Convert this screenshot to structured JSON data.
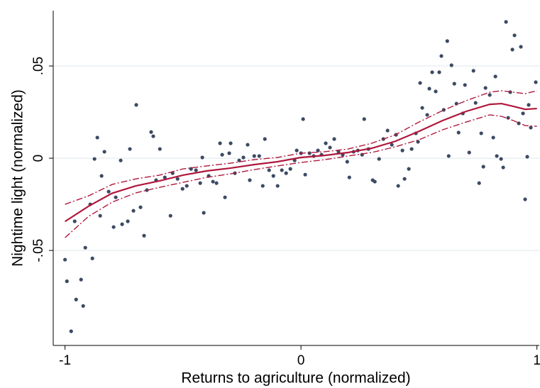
{
  "chart_data": {
    "type": "scatter",
    "xlabel": "Returns to agriculture (normalized)",
    "ylabel": "Nightime light (normalized)",
    "xlim": [
      -1.05,
      1.01
    ],
    "xticks": [
      -1,
      0,
      1
    ],
    "ylim": [
      -0.1015,
      0.08
    ],
    "yticks": [
      {
        "value": -0.05,
        "label": "-.05"
      },
      {
        "value": 0,
        "label": "0"
      },
      {
        "value": 0.05,
        "label": ".05"
      }
    ],
    "grid": true,
    "series": [
      {
        "type": "scatter",
        "color": "#3c4a63",
        "x": [
          -1.0,
          -0.992,
          -0.974,
          -0.959,
          -0.953,
          -0.932,
          -0.923,
          -0.914,
          -0.893,
          -0.884,
          -0.875,
          -0.863,
          -0.851,
          -0.845,
          -0.833,
          -0.815,
          -0.794,
          -0.785,
          -0.764,
          -0.758,
          -0.734,
          -0.725,
          -0.71,
          -0.698,
          -0.68,
          -0.665,
          -0.653,
          -0.635,
          -0.626,
          -0.614,
          -0.598,
          -0.577,
          -0.553,
          -0.544,
          -0.523,
          -0.502,
          -0.484,
          -0.466,
          -0.445,
          -0.427,
          -0.418,
          -0.412,
          -0.391,
          -0.373,
          -0.358,
          -0.343,
          -0.334,
          -0.322,
          -0.304,
          -0.298,
          -0.28,
          -0.262,
          -0.244,
          -0.226,
          -0.217,
          -0.198,
          -0.177,
          -0.162,
          -0.153,
          -0.135,
          -0.117,
          -0.099,
          -0.081,
          -0.063,
          -0.045,
          -0.027,
          -0.018,
          0,
          0.009,
          0.018,
          0.036,
          0.054,
          0.072,
          0.087,
          0.105,
          0.123,
          0.141,
          0.159,
          0.177,
          0.196,
          0.205,
          0.223,
          0.241,
          0.259,
          0.268,
          0.286,
          0.304,
          0.313,
          0.331,
          0.349,
          0.367,
          0.385,
          0.403,
          0.412,
          0.43,
          0.439,
          0.457,
          0.469,
          0.487,
          0.496,
          0.505,
          0.514,
          0.535,
          0.544,
          0.556,
          0.571,
          0.586,
          0.595,
          0.605,
          0.62,
          0.626,
          0.638,
          0.65,
          0.659,
          0.668,
          0.686,
          0.695,
          0.713,
          0.731,
          0.74,
          0.755,
          0.764,
          0.773,
          0.782,
          0.8,
          0.815,
          0.824,
          0.83,
          0.848,
          0.857,
          0.869,
          0.878,
          0.887,
          0.896,
          0.905,
          0.923,
          0.932,
          0.941,
          0.95,
          0.959,
          0.965,
          0.974,
          0.995
        ],
        "values": [
          -0.055,
          -0.0667,
          -0.0938,
          -0.0342,
          -0.0766,
          -0.0658,
          -0.0801,
          -0.0485,
          -0.025,
          -0.0543,
          -0.0004,
          0.0112,
          -0.0312,
          -0.0096,
          0.0035,
          -0.0181,
          -0.0373,
          -0.0212,
          -0.0012,
          -0.0358,
          -0.0342,
          0.005,
          -0.0285,
          0.0289,
          -0.0266,
          -0.042,
          -0.0173,
          0.0142,
          0.0119,
          -0.0119,
          0.005,
          -0.0104,
          -0.0312,
          -0.0081,
          -0.0112,
          -0.0166,
          -0.015,
          -0.0058,
          -0.0065,
          -0.0135,
          0.0004,
          -0.0296,
          -0.0096,
          -0.0127,
          -0.0135,
          0.0081,
          0.0019,
          -0.0212,
          0.0027,
          0.0081,
          -0.0081,
          -0.0012,
          0.0004,
          0.0073,
          -0.0119,
          0.0012,
          0.0012,
          -0.015,
          0.0104,
          -0.0065,
          -0.0096,
          -0.015,
          -0.0065,
          -0.0081,
          -0.0058,
          -0.0012,
          0.0042,
          0.0027,
          0.0212,
          -0.0089,
          0.0027,
          0.0012,
          0.0042,
          0.0019,
          0.0081,
          0.0058,
          0.0104,
          0.0035,
          0.0019,
          -0.0019,
          -0.0104,
          0.0035,
          0.0042,
          0.0019,
          0.0212,
          0.005,
          -0.0119,
          -0.0127,
          -0.0004,
          0.0104,
          0.015,
          0.0073,
          0.0127,
          -0.015,
          0.0042,
          -0.0112,
          -0.0058,
          0.005,
          0.0135,
          0.0089,
          0.0408,
          0.0273,
          0.0235,
          0.0377,
          0.0466,
          0.0362,
          0.0466,
          0.0554,
          0.0262,
          0.0635,
          0.0012,
          0.0504,
          0.0404,
          0.0296,
          0.0139,
          0.0243,
          0.0397,
          0.0031,
          0.0474,
          0.03,
          -0.0135,
          0.0135,
          -0.0046,
          0.0381,
          0.0343,
          0.0112,
          0.0443,
          0.0012,
          -0.0004,
          -0.005,
          0.0739,
          0.0219,
          0.0358,
          0.0589,
          0.0666,
          0.0189,
          0.0604,
          0.0243,
          -0.0223,
          0.0008,
          0.0289,
          0.0166,
          0.0412
        ]
      },
      {
        "type": "line",
        "color": "#b0173c",
        "dash": false,
        "x": [
          -1,
          -0.9,
          -0.8,
          -0.7,
          -0.6,
          -0.5,
          -0.4,
          -0.3,
          -0.2,
          -0.1,
          0,
          0.1,
          0.2,
          0.3,
          0.4,
          0.5,
          0.6,
          0.7,
          0.8,
          0.85,
          0.9,
          0.95,
          1.0
        ],
        "values": [
          -0.0343,
          -0.026,
          -0.019,
          -0.015,
          -0.0123,
          -0.0092,
          -0.0069,
          -0.0054,
          -0.0035,
          -0.0019,
          0.0004,
          0.0015,
          0.0031,
          0.0054,
          0.0092,
          0.0146,
          0.0204,
          0.0254,
          0.0292,
          0.0296,
          0.0281,
          0.0265,
          0.0269
        ]
      },
      {
        "type": "line",
        "color": "#b0173c",
        "dash": true,
        "x": [
          -1,
          -0.9,
          -0.8,
          -0.7,
          -0.6,
          -0.5,
          -0.4,
          -0.3,
          -0.2,
          -0.1,
          0,
          0.1,
          0.2,
          0.3,
          0.4,
          0.5,
          0.6,
          0.7,
          0.8,
          0.85,
          0.9,
          0.95,
          1.0
        ],
        "values": [
          -0.025,
          -0.0204,
          -0.0142,
          -0.0112,
          -0.0092,
          -0.0058,
          -0.0042,
          -0.0027,
          -0.0008,
          0.0004,
          0.0027,
          0.0035,
          0.005,
          0.0081,
          0.0127,
          0.0196,
          0.0258,
          0.0312,
          0.0358,
          0.0366,
          0.0358,
          0.035,
          0.0366
        ]
      },
      {
        "type": "line",
        "color": "#b0173c",
        "dash": true,
        "x": [
          -1,
          -0.9,
          -0.8,
          -0.7,
          -0.6,
          -0.5,
          -0.4,
          -0.3,
          -0.2,
          -0.1,
          0,
          0.1,
          0.2,
          0.3,
          0.4,
          0.5,
          0.6,
          0.7,
          0.8,
          0.85,
          0.9,
          0.95,
          1.0
        ],
        "values": [
          -0.0431,
          -0.0315,
          -0.0238,
          -0.0188,
          -0.0158,
          -0.0131,
          -0.0104,
          -0.0085,
          -0.0062,
          -0.0042,
          -0.0023,
          -0.0008,
          0.0012,
          0.0031,
          0.0062,
          0.01,
          0.0154,
          0.0196,
          0.0235,
          0.0227,
          0.0204,
          0.0177,
          0.0173
        ]
      }
    ]
  }
}
